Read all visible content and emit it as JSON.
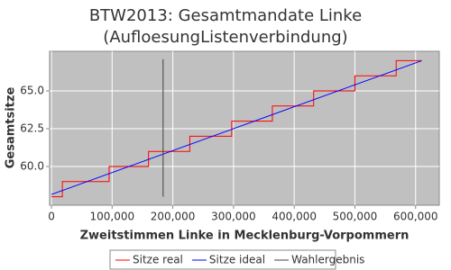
{
  "chart_data": {
    "type": "line",
    "title": "BTW2013: Gesamtmandate Linke",
    "subtitle": "(AufloesungListenverbindung)",
    "x_label": "Zweitstimmen Linke in Mecklenburg-Vorpommern",
    "y_label": "Gesamtsitze",
    "xlim": [
      -3000,
      639000
    ],
    "ylim": [
      57.44,
      67.62
    ],
    "xticks": [
      0,
      {
        "value": 100000,
        "label": "100,000"
      },
      {
        "value": 200000,
        "label": "200,000"
      },
      {
        "value": 300000,
        "label": "300,000"
      },
      {
        "value": 400000,
        "label": "400,000"
      },
      {
        "value": 500000,
        "label": "500,000"
      },
      {
        "value": 600000,
        "label": "600,000"
      }
    ],
    "yticks": [
      {
        "value": 60,
        "label": "60.0"
      },
      62.5,
      {
        "value": 65,
        "label": "65.0"
      }
    ],
    "grid": true,
    "legend": "bottom",
    "series": [
      {
        "name": "Sitze real",
        "color": "#ff0000",
        "x": [
          0,
          18000,
          18000,
          95000,
          95000,
          160000,
          160000,
          228000,
          228000,
          297000,
          297000,
          364000,
          364000,
          432000,
          432000,
          500000,
          500000,
          568000,
          568000,
          610000
        ],
        "values": [
          58,
          58,
          59,
          59,
          60,
          60,
          61,
          61,
          62,
          62,
          63,
          63,
          64,
          64,
          65,
          65,
          66,
          66,
          67,
          67
        ]
      },
      {
        "name": "Sitze ideal",
        "color": "#0000ff",
        "x": [
          0,
          610000
        ],
        "values": [
          58.15,
          67.0
        ]
      },
      {
        "name": "Wahlergebnis",
        "color": "#404040",
        "x": [
          184000,
          184000
        ],
        "values": [
          58.0,
          67.1
        ]
      }
    ]
  }
}
